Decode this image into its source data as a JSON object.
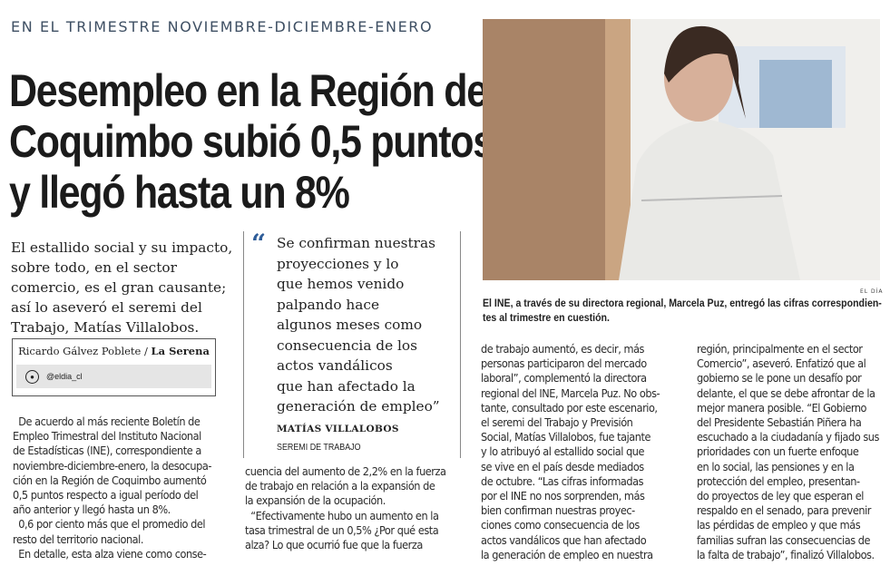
{
  "kicker": "EN EL TRIMESTRE NOVIEMBRE-DICIEMBRE-ENERO",
  "headline": [
    "Desempleo en la Región de",
    "Coquimbo subió 0,5 puntos",
    "y llegó hasta un 8%"
  ],
  "lead": [
    "El estallido social y su impacto,",
    "sobre todo, en el sector",
    "comercio, es el gran causante;",
    "así lo aseveró el seremi del",
    "Trabajo, Matías Villalobos."
  ],
  "byline": {
    "author": "Ricardo Gálvez Poblete /",
    "place": "La Serena",
    "social_icon": "twitter-icon",
    "handle": "@eldia_cl"
  },
  "quote": {
    "mark": "“",
    "lines": [
      "Se confirman nuestras",
      "proyecciones y lo",
      "que hemos venido",
      "palpando hace",
      "algunos meses como",
      "consecuencia de los",
      "actos vandálicos",
      "que han afectado la",
      "generación de empleo”"
    ],
    "author": "MATÍAS VILLALOBOS",
    "role": "SEREMI DE TRABAJO"
  },
  "photo": {
    "credit": "EL DÍA",
    "caption": [
      "El INE, a través de su directora regional, Marcela Puz, entregó las cifras correspondien-",
      "tes al trimestre en cuestión."
    ]
  },
  "columns": [
    [
      "  De acuerdo al más reciente Boletín de",
      "Empleo Trimestral del Instituto Nacional",
      "de Estadísticas (INE), correspondiente a",
      "noviembre-diciembre-enero, la desocupa-",
      "ción en la Región de Coquimbo aumentó",
      "0,5 puntos respecto a igual período del",
      "año anterior y llegó hasta un 8%.",
      "  0,6 por ciento más que el promedio del",
      "resto del territorio nacional.",
      "  En detalle, esta alza viene como conse-"
    ],
    [
      "cuencia del aumento de 2,2% en la fuerza",
      "de trabajo en relación a la expansión de",
      "la expansión de la ocupación.",
      "  “Efectivamente hubo un aumento en la",
      "tasa trimestral de un 0,5% ¿Por qué esta",
      "alza? Lo que ocurrió fue que la fuerza"
    ],
    [
      "de trabajo aumentó, es decir, más",
      "personas participaron del mercado",
      "laboral”, complementó la directora",
      "regional del INE, Marcela Puz. No obs-",
      "tante, consultado por este escenario,",
      "el seremi del Trabajo y Previsión",
      "Social, Matías Villalobos, fue tajante",
      "y lo atribuyó al estallido social que",
      "se vive en el país desde mediados",
      "de octubre. “Las cifras informadas",
      "por el INE no nos sorprenden, más",
      "bien confirman nuestras proyec-",
      "ciones como consecuencia de los",
      "actos vandálicos que han afectado",
      "la generación de empleo en nuestra"
    ],
    [
      "región, principalmente en el sector",
      "Comercio”, aseveró. Enfatizó que al",
      "gobierno se le pone un desafío por",
      "delante, el que se debe afrontar de la",
      "mejor manera posible. “El Gobierno",
      "del Presidente Sebastián Piñera ha",
      "escuchado a la ciudadanía y fijado sus",
      "prioridades con un fuerte enfoque",
      "en lo social, las pensiones y en la",
      "protección del empleo, presentan-",
      "do proyectos de ley que esperan el",
      "respaldo en el senado, para prevenir",
      "las pérdidas de empleo y que más",
      "familias sufran las consecuencias de",
      "la falta de trabajo”, finalizó Villalobos."
    ]
  ],
  "colors": {
    "kicker": "#3e4f63",
    "quote_mark": "#2f5d99"
  }
}
